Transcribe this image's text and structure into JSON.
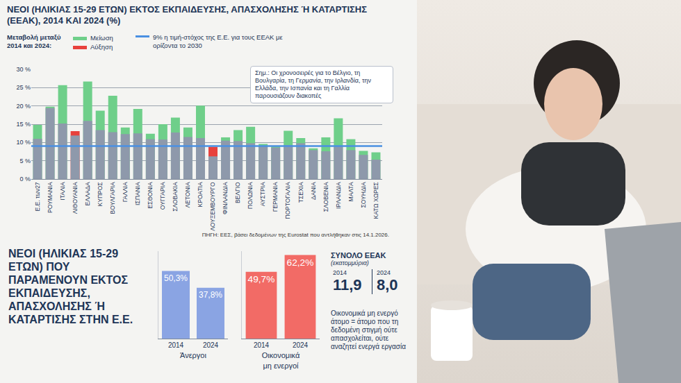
{
  "chart_data": [
    {
      "type": "bar",
      "title": "ΝΕΟΙ (ΗΛΙΚΙΑΣ 15-29 ΕΤΩΝ) ΕΚΤΟΣ ΕΚΠΑΙΔΕΥΣΗΣ, ΑΠΑΣΧΟΛΗΣΗΣ Ή ΚΑΤΑΡΤΙΣΗΣ (ΕΕΑΚ), 2014 ΚΑΙ 2024 (%)",
      "legend_title": "Μεταβολή μεταξύ 2014 και 2024:",
      "legend_items": [
        {
          "label": "Μείωση",
          "color": "#6fcf8a"
        },
        {
          "label": "Αύξηση",
          "color": "#e8413c"
        }
      ],
      "target": {
        "value": 9,
        "label": "9% η τιμή-στόχος της Ε.Ε. για τους ΕΕΑΚ με ορίζοντα το 2030",
        "color": "#4a90e2"
      },
      "note": "Σημ.: Οι χρονοσειρές για το Βέλγιο, τη Βουλγαρία, τη Γερμανία, την Ιρλανδία, την Ελλάδα, την Ισπανία και τη Γαλλία παρουσιάζουν διακοπές",
      "source": "ΠΗΓΗ: ΕΕΣ, βάσει δεδομένων της Eurostat που αντλήθηκαν στις 14.1.2026.",
      "categories": [
        "Ε.Ε. των27",
        "ΡΟΥΜΑΝΙΑ",
        "ΙΤΑΛΙΑ",
        "ΛΙΘΟΥΑΝΙΑ",
        "ΕΛΛΑΔΑ",
        "ΚΥΠΡΟΣ",
        "ΒΟΥΛΓΑΡΙΑ",
        "ΓΑΛΛΙΑ",
        "ΙΣΠΑΝΙΑ",
        "ΕΣΘΟΝΙΑ",
        "ΟΥΓΓΑΡΙΑ",
        "ΣΛΟΒΑΚΙΑ",
        "ΛΕΤΟΝΙΑ",
        "ΚΡΟΑΤΙΑ",
        "ΛΟΥΞΕΜΒΟΥΡΓΟ",
        "ΦΙΝΛΑΝΔΙΑ",
        "ΒΕΛΓΙΟ",
        "ΠΟΛΩΝΙΑ",
        "ΑΥΣΤΡΙΑ",
        "ΓΕΡΜΑΝΙΑ",
        "ΠΟΡΤΟΓΑΛΙΑ",
        "ΤΣΕΧΙΑ",
        "ΔΑΝΙΑ",
        "ΣΛΟΒΕΝΙΑ",
        "ΙΡΛΑΝΔΙΑ",
        "ΜΑΛΤΑ",
        "ΣΟΥΗΔΙΑ",
        "ΚΑΤΩ ΧΩΡΕΣ"
      ],
      "series": [
        {
          "name": "2014",
          "values": [
            14.8,
            19.8,
            25.7,
            11.9,
            26.7,
            18.7,
            22.8,
            14.1,
            19.2,
            12.4,
            15.0,
            16.8,
            14.1,
            20.1,
            6.2,
            11.4,
            13.4,
            14.3,
            9.6,
            8.9,
            13.2,
            11.2,
            8.4,
            11.4,
            16.6,
            10.9,
            7.7,
            7.3
          ]
        },
        {
          "name": "2024",
          "values": [
            11.0,
            19.4,
            15.2,
            13.1,
            15.9,
            13.4,
            12.8,
            12.3,
            12.5,
            10.9,
            10.8,
            12.7,
            11.5,
            11.2,
            8.8,
            10.5,
            10.4,
            9.8,
            9.0,
            8.6,
            9.3,
            9.8,
            7.9,
            7.6,
            8.9,
            7.9,
            6.6,
            5.3
          ]
        }
      ],
      "color": "#8e99ab",
      "ylim": [
        0,
        30
      ],
      "yticks": [
        {
          "value": 0,
          "label": "0 %"
        },
        {
          "value": 5,
          "label": "5 %"
        },
        {
          "value": 10,
          "label": "10 %"
        },
        {
          "value": 15,
          "label": "15 %"
        },
        {
          "value": 20,
          "label": "20 %"
        },
        {
          "value": 25,
          "label": "25 %"
        },
        {
          "value": 30,
          "label": "30 %"
        }
      ],
      "grid": true,
      "legend": "top-left"
    },
    {
      "type": "bar",
      "categories": [
        "2014",
        "2024"
      ],
      "values": [
        50.3,
        37.8
      ],
      "value_labels": [
        "50,3%",
        "37,8%"
      ],
      "data_labels": true,
      "color": "#8aa4e3",
      "xlabel": "Άνεργοι",
      "ylim": [
        0,
        65
      ],
      "tick_labels": "x"
    },
    {
      "type": "bar",
      "categories": [
        "2014",
        "2024"
      ],
      "values": [
        49.7,
        62.2
      ],
      "value_labels": [
        "49,7%",
        "62,2%"
      ],
      "data_labels": true,
      "color": "#f26b66",
      "xlabel": "Οικονομικά μη ενεργοί",
      "ylim": [
        0,
        65
      ],
      "tick_labels": "x"
    }
  ],
  "panel_title": "ΝΕΟΙ (ΗΛΙΚΙΑΣ 15-29 ΕΤΩΝ) ΠΟΥ ΠΑΡΑΜΕΝΟΥΝ ΕΚΤΟΣ ΕΚΠΑΙΔΕΥΣΗΣ, ΑΠΑΣΧΟΛΗΣΗΣ Ή ΚΑΤΑΡΤΙΣΗΣ ΣΤΗΝ Ε.Ε.",
  "totals": {
    "title": "ΣΥΝΟΛΟ ΕΕΑΚ",
    "subtitle": "(εκατομμύρια)",
    "categories": [
      "2014",
      "2024"
    ],
    "values": [
      11.9,
      8.0
    ],
    "value_labels": [
      "11,9",
      "8,0"
    ]
  },
  "definition": "Οικονομικά μη ενεργό άτομο = άτομο που τη δεδομένη στιγμή ούτε απασχολείται, ούτε αναζητεί ενεργά εργασία"
}
